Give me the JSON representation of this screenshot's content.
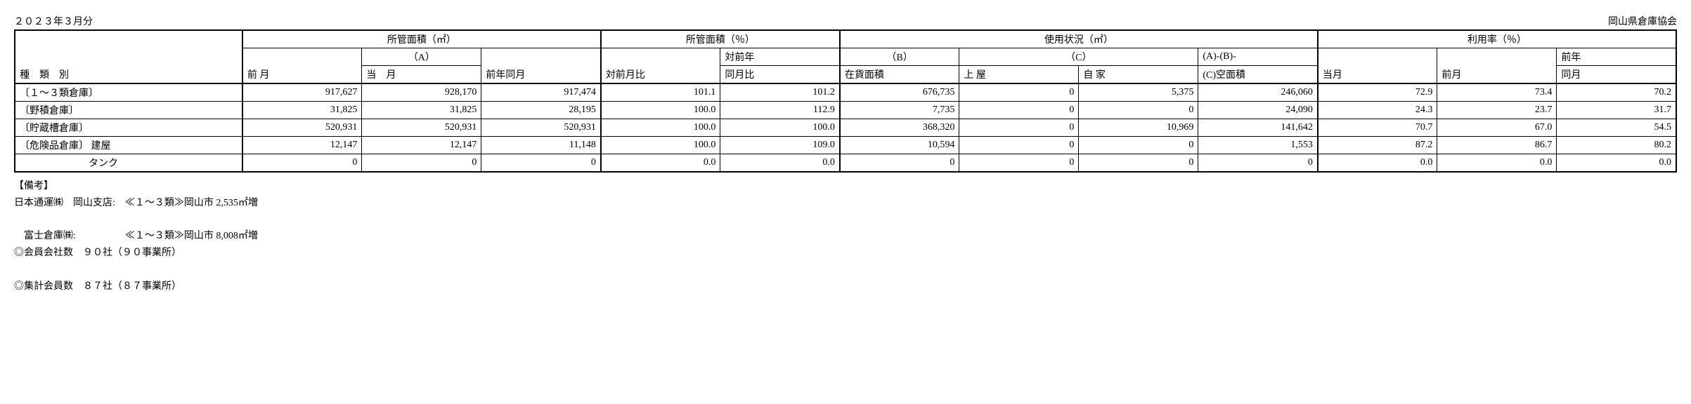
{
  "header": {
    "period": "２０２３年３月分",
    "org": "岡山県倉庫協会"
  },
  "group_headers": {
    "area_m2": "所管面積（㎡）",
    "area_pct": "所管面積（％）",
    "usage_m2": "使用状況（㎡）",
    "util_pct": "利用率（％）"
  },
  "sub_headers": {
    "category": "種　類　別",
    "prev_month": "前 月",
    "a_label": "（A）",
    "cur_month": "当　月",
    "prev_year_month": "前年同月",
    "vs_prev_month": "対前月比",
    "vs_prev_year_top": "対前年",
    "vs_prev_year_bottom": "同月比",
    "b_label": "（B）",
    "stock_area": "在貨面積",
    "c_label": "（C）",
    "uwaya": "上 屋",
    "jika": "自 家",
    "vacant_top": "(A)-(B)-",
    "vacant_bottom": "(C)空面積",
    "util_cur": "当月",
    "util_prev": "前月",
    "util_py_top": "前年",
    "util_py_bottom": "同月"
  },
  "rows": [
    {
      "label": "〔１～３類倉庫〕",
      "area_prev": "917,627",
      "area_cur": "928,170",
      "area_py": "917,474",
      "pct_prev": "101.1",
      "pct_py": "101.2",
      "stock": "676,735",
      "uwaya": "0",
      "jika": "5,375",
      "vacant": "246,060",
      "util_cur": "72.9",
      "util_prev": "73.4",
      "util_py": "70.2"
    },
    {
      "label": "〔野積倉庫〕",
      "area_prev": "31,825",
      "area_cur": "31,825",
      "area_py": "28,195",
      "pct_prev": "100.0",
      "pct_py": "112.9",
      "stock": "7,735",
      "uwaya": "0",
      "jika": "0",
      "vacant": "24,090",
      "util_cur": "24.3",
      "util_prev": "23.7",
      "util_py": "31.7"
    },
    {
      "label": "〔貯蔵槽倉庫〕",
      "area_prev": "520,931",
      "area_cur": "520,931",
      "area_py": "520,931",
      "pct_prev": "100.0",
      "pct_py": "100.0",
      "stock": "368,320",
      "uwaya": "0",
      "jika": "10,969",
      "vacant": "141,642",
      "util_cur": "70.7",
      "util_prev": "67.0",
      "util_py": "54.5"
    },
    {
      "label": "〔危険品倉庫〕 建屋",
      "area_prev": "12,147",
      "area_cur": "12,147",
      "area_py": "11,148",
      "pct_prev": "100.0",
      "pct_py": "109.0",
      "stock": "10,594",
      "uwaya": "0",
      "jika": "0",
      "vacant": "1,553",
      "util_cur": "87.2",
      "util_prev": "86.7",
      "util_py": "80.2"
    },
    {
      "label": "　　　　　　　タンク",
      "area_prev": "0",
      "area_cur": "0",
      "area_py": "0",
      "pct_prev": "0.0",
      "pct_py": "0.0",
      "stock": "0",
      "uwaya": "0",
      "jika": "0",
      "vacant": "0",
      "util_cur": "0.0",
      "util_prev": "0.0",
      "util_py": "0.0"
    }
  ],
  "notes": {
    "biko": "【備考】",
    "line1": "日本通運㈱　岡山支店:　≪１～３類≫岡山市 2,535㎡増",
    "line2": "　富士倉庫㈱:　　　　　≪１～３類≫岡山市 8,008㎡増",
    "members1": "◎会員会社数　９０社（９０事業所）",
    "members2": "◎集計会員数　８７社（８７事業所）"
  }
}
